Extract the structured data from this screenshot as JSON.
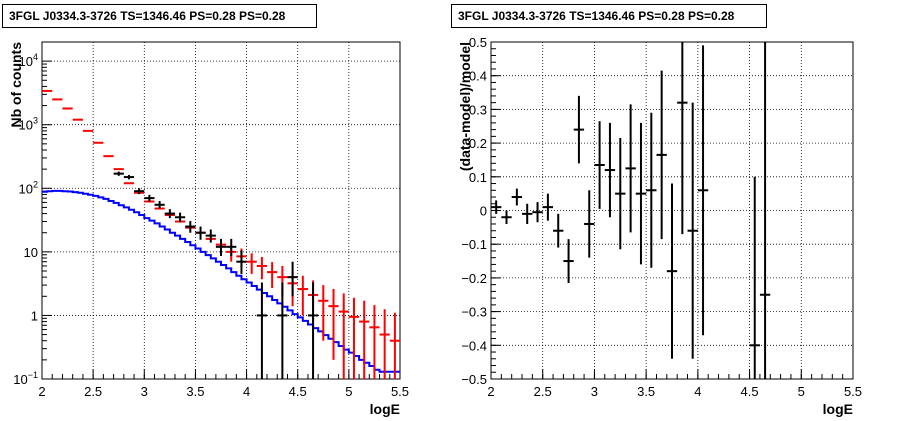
{
  "chart_data": [
    {
      "type": "scatter",
      "title": "3FGL J0334.3-3726 TS=1346.46 PS=0.28 PS=0.28",
      "xlabel": "logE",
      "ylabel": "Nb of counts",
      "xlim": [
        2,
        5.5
      ],
      "ylim": [
        0.1,
        20000
      ],
      "yscale": "log",
      "grid": true,
      "xticks": [
        "2",
        "2.5",
        "3",
        "3.5",
        "4",
        "4.5",
        "5",
        "5.5"
      ],
      "yticks": [
        {
          "value": 0.1,
          "label": "10",
          "sup": "−1"
        },
        {
          "value": 1,
          "label": "1",
          "sup": ""
        },
        {
          "value": 10,
          "label": "10",
          "sup": ""
        },
        {
          "value": 100,
          "label": "10",
          "sup": "2"
        },
        {
          "value": 1000,
          "label": "10",
          "sup": "3"
        },
        {
          "value": 10000,
          "label": "10",
          "sup": "4"
        }
      ],
      "series": [
        {
          "color": "#000000",
          "x": [
            2.75,
            2.85,
            2.95,
            3.05,
            3.15,
            3.25,
            3.35,
            3.45,
            3.55,
            3.65,
            3.75,
            3.85,
            3.95,
            4.15,
            4.35,
            4.45,
            4.65
          ],
          "y": [
            170,
            150,
            90,
            70,
            55,
            40,
            35,
            25,
            20,
            18,
            12,
            12,
            7,
            1,
            1,
            4,
            1
          ],
          "yerr_low": [
            13,
            12,
            9,
            8,
            7,
            6,
            6,
            5,
            4.5,
            4,
            3.4,
            3.4,
            2.5,
            0.9,
            0.9,
            2,
            0.9
          ],
          "yerr_high": [
            13,
            12,
            10,
            9,
            8,
            7,
            6.5,
            5.5,
            5,
            4.5,
            4,
            4,
            3.5,
            2.3,
            2.3,
            3,
            2.3
          ],
          "xerr": 0.05
        },
        {
          "color": "#ff0000",
          "x": [
            2.05,
            2.15,
            2.25,
            2.35,
            2.45,
            2.55,
            2.65,
            2.75,
            2.85,
            2.95,
            3.05,
            3.15,
            3.25,
            3.35,
            3.45,
            3.55,
            3.65,
            3.75,
            3.85,
            3.95,
            4.05,
            4.15,
            4.25,
            4.35,
            4.45,
            4.55,
            4.65,
            4.75,
            4.85,
            4.95,
            5.05,
            5.15,
            5.25,
            5.35,
            5.45
          ],
          "y": [
            3400,
            2500,
            1800,
            1200,
            800,
            520,
            320,
            200,
            120,
            85,
            62,
            48,
            38,
            30,
            24,
            20,
            16,
            13,
            10,
            8.5,
            7,
            6,
            4.8,
            4,
            3.2,
            2.6,
            2.1,
            1.7,
            1.4,
            1.15,
            0.95,
            0.8,
            0.65,
            0.5,
            0.4
          ],
          "yerr_low": [
            0,
            0,
            0,
            0,
            0,
            0,
            0,
            0,
            0,
            0,
            0,
            0,
            0,
            0,
            0,
            0,
            0,
            0,
            3,
            2.8,
            2.5,
            2.3,
            2.1,
            2,
            1.8,
            1.6,
            1.45,
            1.3,
            1.2,
            1.07,
            0.95,
            0.8,
            0.65,
            0.5,
            0.4
          ],
          "yerr_high": [
            0,
            0,
            0,
            0,
            0,
            0,
            0,
            0,
            0,
            0,
            0,
            0,
            0,
            0,
            0,
            0,
            0,
            0,
            3,
            2.8,
            2.5,
            2.3,
            2.1,
            2,
            1.8,
            1.6,
            1.45,
            1.3,
            1.2,
            1.07,
            0.95,
            0.9,
            0.8,
            0.75,
            0.7
          ],
          "xerr": 0.05
        },
        {
          "color": "#0000ff",
          "style": "step",
          "x": [
            2.0,
            2.05,
            2.1,
            2.15,
            2.2,
            2.25,
            2.3,
            2.35,
            2.4,
            2.45,
            2.5,
            2.55,
            2.6,
            2.65,
            2.7,
            2.75,
            2.8,
            2.85,
            2.9,
            2.95,
            3.0,
            3.05,
            3.1,
            3.15,
            3.2,
            3.25,
            3.3,
            3.35,
            3.4,
            3.45,
            3.5,
            3.55,
            3.6,
            3.65,
            3.7,
            3.75,
            3.8,
            3.85,
            3.9,
            3.95,
            4.0,
            4.05,
            4.1,
            4.15,
            4.2,
            4.25,
            4.3,
            4.35,
            4.4,
            4.45,
            4.5,
            4.55,
            4.6,
            4.65,
            4.7,
            4.75,
            4.8,
            4.85,
            4.9,
            4.95,
            5.0,
            5.05,
            5.1,
            5.15,
            5.2,
            5.25,
            5.3,
            5.35,
            5.4,
            5.45
          ],
          "y": [
            88,
            90,
            91,
            91,
            90,
            89,
            87,
            85,
            82,
            79,
            76,
            72,
            68,
            63,
            59,
            54,
            50,
            46,
            42,
            38,
            34,
            31,
            28,
            25,
            22.5,
            20,
            18,
            16,
            14.3,
            12.7,
            11.3,
            10,
            8.9,
            7.9,
            7,
            6.2,
            5.5,
            4.8,
            4.2,
            3.7,
            3.3,
            2.9,
            2.55,
            2.25,
            2.0,
            1.75,
            1.55,
            1.37,
            1.2,
            1.05,
            0.93,
            0.82,
            0.72,
            0.63,
            0.56,
            0.49,
            0.43,
            0.38,
            0.33,
            0.29,
            0.26,
            0.23,
            0.2,
            0.18,
            0.16,
            0.14,
            0.13,
            0.13,
            0.13,
            0.13
          ]
        }
      ]
    },
    {
      "type": "scatter",
      "title": "3FGL J0334.3-3726 TS=1346.46 PS=0.28 PS=0.28",
      "xlabel": "logE",
      "ylabel": "(data-model)/model",
      "xlim": [
        2,
        5.5
      ],
      "ylim": [
        -0.5,
        0.5
      ],
      "grid": true,
      "xticks": [
        "2",
        "2.5",
        "3",
        "3.5",
        "4",
        "4.5",
        "5",
        "5.5"
      ],
      "yticks": [
        "−0.5",
        "−0.4",
        "−0.3",
        "−0.2",
        "−0.1",
        "0",
        "0.1",
        "0.2",
        "0.3",
        "0.4",
        "0.5"
      ],
      "series": [
        {
          "color": "#000000",
          "x": [
            2.05,
            2.15,
            2.25,
            2.35,
            2.45,
            2.55,
            2.65,
            2.75,
            2.85,
            2.95,
            3.05,
            3.15,
            3.25,
            3.35,
            3.45,
            3.55,
            3.65,
            3.75,
            3.85,
            3.95,
            4.05,
            4.55,
            4.65
          ],
          "y": [
            0.01,
            -0.02,
            0.04,
            -0.01,
            -0.005,
            0.01,
            -0.06,
            -0.15,
            0.24,
            -0.04,
            0.135,
            0.12,
            0.05,
            0.125,
            0.05,
            0.06,
            0.165,
            -0.18,
            0.32,
            -0.06,
            0.06,
            -0.4,
            -0.25
          ],
          "yerr": [
            0.02,
            0.02,
            0.025,
            0.03,
            0.03,
            0.04,
            0.05,
            0.065,
            0.1,
            0.1,
            0.13,
            0.14,
            0.165,
            0.19,
            0.21,
            0.23,
            0.25,
            0.26,
            0.39,
            0.38,
            0.43,
            0.5,
            0.8
          ],
          "xerr": 0.05
        }
      ]
    }
  ]
}
